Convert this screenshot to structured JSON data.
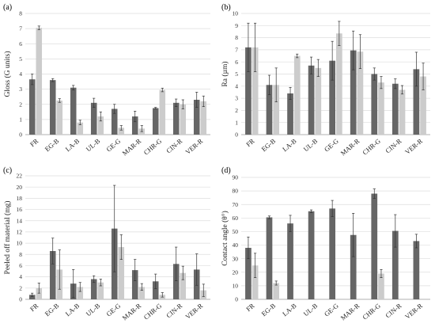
{
  "colors": {
    "dark": "#666666",
    "light": "#cccccc",
    "grid": "#dddddd",
    "axis": "#999999"
  },
  "chart_data": [
    {
      "panel_label": "(a)",
      "type": "bar",
      "ylabel": "Gloss (G units)",
      "ylim": [
        0,
        8
      ],
      "yticks": [
        0,
        1,
        2,
        3,
        4,
        5,
        6,
        7,
        8
      ],
      "categories": [
        "FR",
        "EG-B",
        "LA-B",
        "UL-B",
        "GE-G",
        "MAR-R",
        "CHR-G",
        "CIN-R",
        "VER-R"
      ],
      "series": [
        {
          "values": [
            3.65,
            3.6,
            3.1,
            2.1,
            1.7,
            1.2,
            1.75,
            2.1,
            2.3
          ],
          "errors": [
            0.35,
            0.1,
            0.15,
            0.3,
            0.3,
            0.35,
            0.05,
            0.25,
            0.5
          ]
        },
        {
          "values": [
            7.05,
            2.25,
            0.8,
            1.2,
            0.45,
            0.4,
            2.95,
            2.0,
            2.2
          ],
          "errors": [
            0.12,
            0.12,
            0.15,
            0.3,
            0.15,
            0.2,
            0.12,
            0.3,
            0.35
          ]
        }
      ]
    },
    {
      "panel_label": "(b)",
      "type": "bar",
      "ylabel": "Ra (µm)",
      "ylim": [
        0,
        10
      ],
      "yticks": [
        0,
        1,
        2,
        3,
        4,
        5,
        6,
        7,
        8,
        9,
        10
      ],
      "categories": [
        "FR",
        "EG-B",
        "LA-B",
        "UL-B",
        "GE-G",
        "MAR-R",
        "CHR-G",
        "CIN-R",
        "VER-R"
      ],
      "series": [
        {
          "values": [
            7.2,
            4.1,
            3.4,
            5.7,
            6.1,
            6.95,
            5.0,
            4.2,
            5.4
          ],
          "errors": [
            2.0,
            0.8,
            0.5,
            0.7,
            1.6,
            1.6,
            0.5,
            0.4,
            1.4
          ]
        },
        {
          "values": [
            7.2,
            4.1,
            6.5,
            5.5,
            8.35,
            6.85,
            4.3,
            3.7,
            4.8
          ],
          "errors": [
            2.0,
            1.4,
            0.15,
            0.7,
            1.0,
            1.4,
            0.5,
            0.35,
            1.1
          ]
        }
      ]
    },
    {
      "panel_label": "(c)",
      "type": "bar",
      "ylabel": "Peeled off material (mg)",
      "ylim": [
        0,
        22
      ],
      "yticks": [
        0,
        2,
        4,
        6,
        8,
        10,
        12,
        14,
        16,
        18,
        20,
        22
      ],
      "categories": [
        "FR",
        "EG-B",
        "LA-B",
        "UL-B",
        "GE-G",
        "MAR-R",
        "CHR-G",
        "CIN-R",
        "VER-R"
      ],
      "series": [
        {
          "values": [
            0.8,
            8.6,
            2.8,
            3.6,
            12.6,
            5.2,
            3.2,
            6.3,
            5.3
          ],
          "errors": [
            0.3,
            2.3,
            2.5,
            0.6,
            7.7,
            1.9,
            1.3,
            3.0,
            2.8
          ]
        },
        {
          "values": [
            2.0,
            5.3,
            2.2,
            3.0,
            9.3,
            2.2,
            0.8,
            4.7,
            1.6
          ],
          "errors": [
            0.9,
            3.5,
            0.8,
            0.6,
            2.2,
            0.6,
            0.4,
            1.2,
            1.1
          ]
        }
      ]
    },
    {
      "panel_label": "(d)",
      "type": "bar",
      "ylabel": "Contact angle (θ°)",
      "ylim": [
        0,
        90
      ],
      "yticks": [
        0,
        10,
        20,
        30,
        40,
        50,
        60,
        70,
        80,
        90
      ],
      "categories": [
        "FR",
        "EG-B",
        "LA-B",
        "UL-B",
        "GE-G",
        "MAR-R",
        "CHR-G",
        "CIN-R",
        "VER-R"
      ],
      "series": [
        {
          "values": [
            38,
            60.5,
            56,
            65,
            67,
            47.5,
            78,
            50.5,
            43
          ],
          "errors": [
            8,
            1,
            6,
            1,
            6,
            16,
            3.5,
            12,
            5
          ]
        },
        {
          "values": [
            25,
            12,
            null,
            null,
            null,
            null,
            19,
            null,
            null
          ],
          "errors": [
            9,
            1.5,
            0,
            0,
            0,
            0,
            3,
            0,
            0
          ]
        }
      ]
    }
  ]
}
